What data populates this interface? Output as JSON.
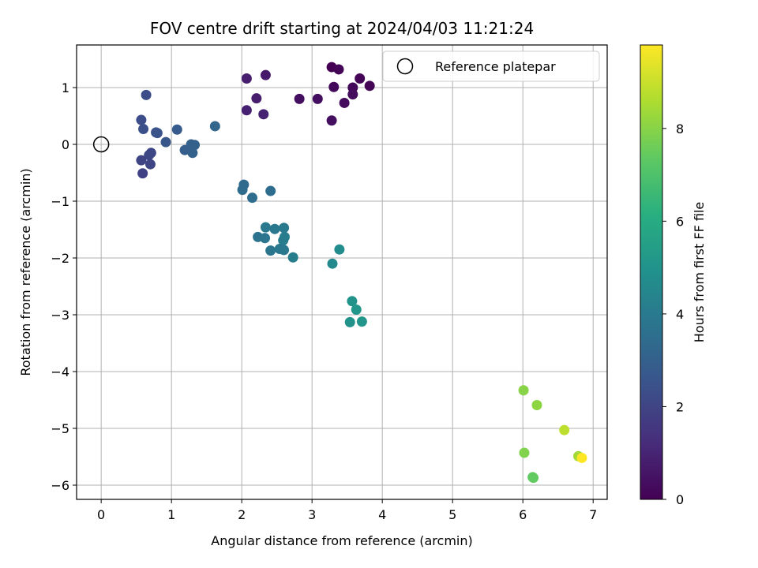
{
  "chart_data": {
    "type": "scatter",
    "title": "FOV centre drift starting at 2024/04/03 11:21:24",
    "xlabel": "Angular distance from reference (arcmin)",
    "ylabel": "Rotation from reference (arcmin)",
    "xlim": [
      -0.35,
      7.2
    ],
    "ylim": [
      -6.25,
      1.75
    ],
    "xticks": [
      0,
      1,
      2,
      3,
      4,
      5,
      6,
      7
    ],
    "yticks": [
      -6,
      -5,
      -4,
      -3,
      -2,
      -1,
      0,
      1
    ],
    "grid": true,
    "legend": {
      "placement": "top-right",
      "entries": [
        "Reference platepar"
      ]
    },
    "reference_point": {
      "x": 0,
      "y": 0,
      "label": "Reference platepar"
    },
    "colorbar": {
      "label": "Hours from first FF file",
      "colormap": "viridis",
      "range": [
        0,
        9.8
      ],
      "ticks": [
        0,
        2,
        4,
        6,
        8
      ]
    },
    "points": [
      {
        "x": 3.28,
        "y": 1.36,
        "h": 0.0
      },
      {
        "x": 3.38,
        "y": 1.32,
        "h": 0.1
      },
      {
        "x": 3.68,
        "y": 1.16,
        "h": 0.1
      },
      {
        "x": 3.82,
        "y": 1.03,
        "h": 0.1
      },
      {
        "x": 3.31,
        "y": 1.01,
        "h": 0.2
      },
      {
        "x": 3.58,
        "y": 1.0,
        "h": 0.2
      },
      {
        "x": 3.58,
        "y": 0.88,
        "h": 0.3
      },
      {
        "x": 3.46,
        "y": 0.73,
        "h": 0.3
      },
      {
        "x": 3.08,
        "y": 0.8,
        "h": 0.4
      },
      {
        "x": 2.82,
        "y": 0.8,
        "h": 0.4
      },
      {
        "x": 3.28,
        "y": 0.42,
        "h": 0.4
      },
      {
        "x": 2.34,
        "y": 1.22,
        "h": 0.7
      },
      {
        "x": 2.07,
        "y": 1.16,
        "h": 0.8
      },
      {
        "x": 2.21,
        "y": 0.81,
        "h": 0.8
      },
      {
        "x": 2.07,
        "y": 0.6,
        "h": 0.9
      },
      {
        "x": 2.31,
        "y": 0.53,
        "h": 0.9
      },
      {
        "x": 0.64,
        "y": 0.87,
        "h": 2.3
      },
      {
        "x": 0.57,
        "y": 0.43,
        "h": 2.3
      },
      {
        "x": 0.6,
        "y": 0.27,
        "h": 2.4
      },
      {
        "x": 0.78,
        "y": 0.21,
        "h": 2.5
      },
      {
        "x": 0.8,
        "y": 0.2,
        "h": 2.5
      },
      {
        "x": 0.92,
        "y": 0.04,
        "h": 2.6
      },
      {
        "x": 1.08,
        "y": 0.26,
        "h": 2.8
      },
      {
        "x": 1.62,
        "y": 0.32,
        "h": 3.2
      },
      {
        "x": 1.28,
        "y": 0.0,
        "h": 3.0
      },
      {
        "x": 1.33,
        "y": -0.01,
        "h": 3.0
      },
      {
        "x": 1.19,
        "y": -0.1,
        "h": 2.9
      },
      {
        "x": 1.3,
        "y": -0.15,
        "h": 3.0
      },
      {
        "x": 0.71,
        "y": -0.15,
        "h": 2.1
      },
      {
        "x": 0.68,
        "y": -0.19,
        "h": 2.1
      },
      {
        "x": 0.57,
        "y": -0.28,
        "h": 2.0
      },
      {
        "x": 0.7,
        "y": -0.35,
        "h": 2.0
      },
      {
        "x": 0.59,
        "y": -0.51,
        "h": 1.9
      },
      {
        "x": 2.03,
        "y": -0.71,
        "h": 3.4
      },
      {
        "x": 2.01,
        "y": -0.8,
        "h": 3.4
      },
      {
        "x": 2.15,
        "y": -0.94,
        "h": 3.5
      },
      {
        "x": 2.41,
        "y": -0.82,
        "h": 3.5
      },
      {
        "x": 2.34,
        "y": -1.46,
        "h": 3.9
      },
      {
        "x": 2.47,
        "y": -1.49,
        "h": 3.9
      },
      {
        "x": 2.6,
        "y": -1.47,
        "h": 4.0
      },
      {
        "x": 2.61,
        "y": -1.63,
        "h": 4.1
      },
      {
        "x": 2.59,
        "y": -1.69,
        "h": 4.1
      },
      {
        "x": 2.23,
        "y": -1.63,
        "h": 3.7
      },
      {
        "x": 2.33,
        "y": -1.65,
        "h": 3.8
      },
      {
        "x": 2.41,
        "y": -1.87,
        "h": 3.8
      },
      {
        "x": 2.54,
        "y": -1.84,
        "h": 3.9
      },
      {
        "x": 2.6,
        "y": -1.86,
        "h": 3.9
      },
      {
        "x": 2.73,
        "y": -1.99,
        "h": 4.1
      },
      {
        "x": 3.39,
        "y": -1.85,
        "h": 4.7
      },
      {
        "x": 3.29,
        "y": -2.1,
        "h": 4.6
      },
      {
        "x": 3.57,
        "y": -2.76,
        "h": 5.0
      },
      {
        "x": 3.63,
        "y": -2.91,
        "h": 5.1
      },
      {
        "x": 3.54,
        "y": -3.13,
        "h": 5.0
      },
      {
        "x": 3.71,
        "y": -3.12,
        "h": 5.1
      },
      {
        "x": 6.01,
        "y": -4.33,
        "h": 8.0
      },
      {
        "x": 6.2,
        "y": -4.59,
        "h": 8.1
      },
      {
        "x": 6.59,
        "y": -5.03,
        "h": 8.8
      },
      {
        "x": 6.02,
        "y": -5.43,
        "h": 7.9
      },
      {
        "x": 6.79,
        "y": -5.49,
        "h": 8.4
      },
      {
        "x": 6.84,
        "y": -5.52,
        "h": 9.8
      },
      {
        "x": 6.14,
        "y": -5.86,
        "h": 7.3
      },
      {
        "x": 6.15,
        "y": -5.87,
        "h": 7.4
      }
    ]
  }
}
